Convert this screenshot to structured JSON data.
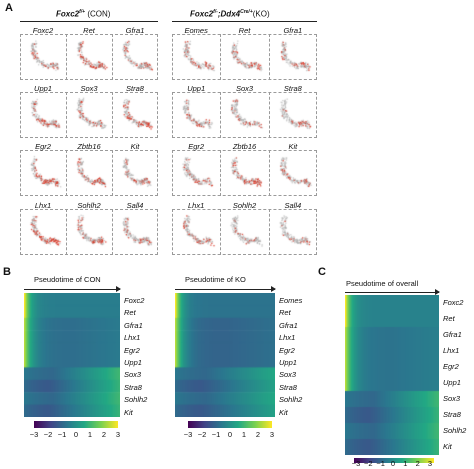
{
  "panel_a": {
    "label": "A",
    "groups": [
      {
        "title_main": "Foxc2",
        "title_sup": "f/+",
        "title_suffix": "(CON)",
        "rows": [
          [
            "Foxc2",
            "Ret",
            "Gfra1"
          ],
          [
            "Upp1",
            "Sox3",
            "Stra8"
          ],
          [
            "Egr2",
            "Zbtb16",
            "Kit"
          ],
          [
            "Lhx1",
            "Sohlh2",
            "Sall4"
          ]
        ]
      },
      {
        "title_main": "Foxc2",
        "title_sup": "f/-",
        "title_mid": ";Ddx4",
        "title_sup2": "Cre/+",
        "title_suffix": "(KO)",
        "rows": [
          [
            "Eomes",
            "Ret",
            "Gfra1"
          ],
          [
            "Upp1",
            "Sox3",
            "Stra8"
          ],
          [
            "Egr2",
            "Zbtb16",
            "Kit"
          ],
          [
            "Lhx1",
            "Sohlh2",
            "Sall4"
          ]
        ]
      }
    ]
  },
  "panel_b": {
    "label": "B",
    "heatmaps": [
      {
        "title": "Pseudotime of CON",
        "genes": [
          "Foxc2",
          "Ret",
          "Gfra1",
          "Lhx1",
          "Egr2",
          "Upp1",
          "Sox3",
          "Stra8",
          "Sohlh2",
          "Kit"
        ]
      },
      {
        "title": "Pseudotime of KO",
        "genes": [
          "Eomes",
          "Ret",
          "Gfra1",
          "Lhx1",
          "Egr2",
          "Upp1",
          "Sox3",
          "Stra8",
          "Sohlh2",
          "Kit"
        ]
      }
    ],
    "colorbar_ticks": [
      "−3",
      "−2",
      "−1",
      "0",
      "1",
      "2",
      "3"
    ]
  },
  "panel_c": {
    "label": "C",
    "title": "Pseudotime of overall",
    "genes": [
      "Foxc2",
      "Ret",
      "Gfra1",
      "Lhx1",
      "Egr2",
      "Upp1",
      "Sox3",
      "Stra8",
      "Sohlh2",
      "Kit"
    ],
    "colorbar_ticks": [
      "−3",
      "−2",
      "−1",
      "0",
      "1",
      "2",
      "3"
    ]
  },
  "colors": {
    "viridis": [
      "#440154",
      "#414487",
      "#2a788e",
      "#22a884",
      "#7ad151",
      "#fde725"
    ],
    "dot": "#d7301f"
  }
}
